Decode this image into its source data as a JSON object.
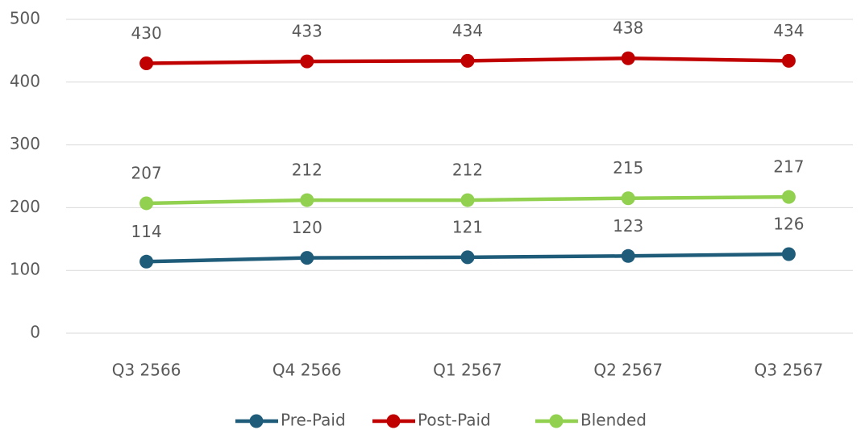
{
  "chart_data": {
    "type": "line",
    "categories": [
      "Q3 2566",
      "Q4 2566",
      "Q1 2567",
      "Q2 2567",
      "Q3 2567"
    ],
    "series": [
      {
        "name": "Pre-Paid",
        "color": "#1f5c7a",
        "values": [
          114,
          120,
          121,
          123,
          126
        ]
      },
      {
        "name": "Post-Paid",
        "color": "#c00000",
        "values": [
          430,
          433,
          434,
          438,
          434
        ]
      },
      {
        "name": "Blended",
        "color": "#92d050",
        "values": [
          207,
          212,
          212,
          215,
          217
        ]
      }
    ],
    "ylim": [
      0,
      500
    ],
    "yticks": [
      0,
      100,
      200,
      300,
      400,
      500
    ],
    "grid": true,
    "legend": "bottom"
  }
}
